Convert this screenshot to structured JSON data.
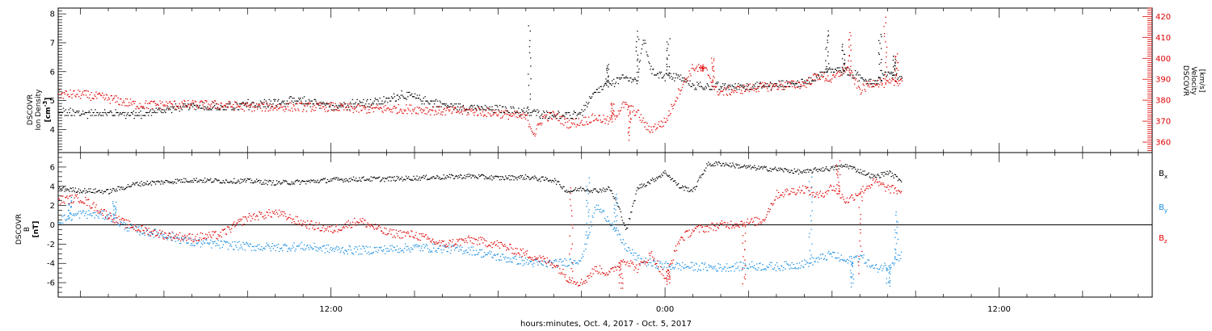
{
  "chart_data": [
    {
      "type": "scatter",
      "panel": "density-velocity",
      "xlabel": "hours:minutes, Oct.  4, 2017 - Oct.  5, 2017",
      "x_ticks": [
        "12:00",
        "0:00",
        "12:00"
      ],
      "x_tick_hours": [
        12,
        24,
        36
      ],
      "xlim_hours": [
        2.2,
        41.5
      ],
      "data_end_hour": 32.5,
      "left_axis": {
        "label_lines": [
          "DSCOVR",
          "Ion Density"
        ],
        "unit": "[cm",
        "unit_sup": "-3",
        "unit_close": "]",
        "ylim": [
          3.2,
          8.2
        ],
        "ticks": [
          "4",
          "5",
          "6",
          "7",
          "8"
        ],
        "color": "#000000"
      },
      "right_axis": {
        "label_lines": [
          "DSCOVR",
          "Velocity",
          "[km/s]"
        ],
        "ylim": [
          355,
          424
        ],
        "ticks": [
          "360",
          "370",
          "380",
          "390",
          "400",
          "410",
          "420"
        ],
        "color": "#e00000"
      },
      "series": [
        {
          "axis": "left",
          "color": "#000000",
          "points": [
            [
              2.2,
              4.6
            ],
            [
              3,
              4.55
            ],
            [
              4,
              4.6
            ],
            [
              5,
              4.5
            ],
            [
              6,
              4.7
            ],
            [
              7,
              4.8
            ],
            [
              8,
              4.75
            ],
            [
              9,
              4.85
            ],
            [
              10,
              4.9
            ],
            [
              11,
              5.0
            ],
            [
              11.5,
              4.85
            ],
            [
              12,
              4.8
            ],
            [
              13,
              4.9
            ],
            [
              14,
              5.0
            ],
            [
              14.5,
              5.2
            ],
            [
              15,
              5.1
            ],
            [
              16,
              4.85
            ],
            [
              17,
              4.75
            ],
            [
              18,
              4.7
            ],
            [
              19,
              4.6
            ],
            [
              19.5,
              4.55
            ],
            [
              20,
              4.5
            ],
            [
              20.5,
              4.45
            ],
            [
              21,
              4.6
            ],
            [
              21.5,
              5.3
            ],
            [
              22,
              5.6
            ],
            [
              22.5,
              5.8
            ],
            [
              23,
              5.7
            ],
            [
              23.2,
              7.2
            ],
            [
              23.5,
              6.0
            ],
            [
              24,
              5.85
            ],
            [
              24.5,
              5.8
            ],
            [
              25,
              5.5
            ],
            [
              26,
              5.45
            ],
            [
              27,
              5.5
            ],
            [
              28,
              5.55
            ],
            [
              29,
              5.6
            ],
            [
              29.5,
              5.9
            ],
            [
              30,
              6.1
            ],
            [
              30.5,
              6.0
            ],
            [
              31,
              5.8
            ],
            [
              31.5,
              5.6
            ],
            [
              32,
              6.0
            ],
            [
              32.5,
              5.7
            ]
          ],
          "spikes": [
            [
              19.1,
              7.6
            ],
            [
              21.9,
              6.3
            ],
            [
              23.0,
              7.4
            ],
            [
              24.1,
              7.1
            ],
            [
              29.8,
              7.4
            ],
            [
              30.4,
              6.9
            ],
            [
              31.7,
              7.3
            ],
            [
              32.2,
              6.6
            ]
          ]
        },
        {
          "axis": "right",
          "color": "#e00000",
          "points": [
            [
              2.2,
              383
            ],
            [
              3,
              383
            ],
            [
              4,
              381
            ],
            [
              5,
              378
            ],
            [
              6,
              378
            ],
            [
              7,
              378
            ],
            [
              8,
              378
            ],
            [
              9,
              377
            ],
            [
              10,
              377
            ],
            [
              11,
              377
            ],
            [
              12,
              377
            ],
            [
              13,
              376
            ],
            [
              14,
              376
            ],
            [
              15,
              376
            ],
            [
              16,
              375
            ],
            [
              17,
              375
            ],
            [
              18,
              374
            ],
            [
              18.5,
              373
            ],
            [
              19,
              372
            ],
            [
              19.3,
              364
            ],
            [
              19.6,
              372
            ],
            [
              20,
              373
            ],
            [
              20.5,
              369
            ],
            [
              21,
              370
            ],
            [
              21.5,
              372
            ],
            [
              22,
              370
            ],
            [
              22.5,
              378
            ],
            [
              23,
              374
            ],
            [
              23.4,
              366
            ],
            [
              24,
              370
            ],
            [
              24.5,
              385
            ],
            [
              25,
              396
            ],
            [
              25.5,
              394
            ],
            [
              25.8,
              385
            ],
            [
              26,
              384
            ],
            [
              27,
              386
            ],
            [
              28,
              387
            ],
            [
              29,
              388
            ],
            [
              29.5,
              392
            ],
            [
              30,
              390
            ],
            [
              30.5,
              396
            ],
            [
              31,
              385
            ],
            [
              31.5,
              389
            ],
            [
              32,
              388
            ],
            [
              32.5,
              390
            ]
          ],
          "spikes": [
            [
              22.1,
              379
            ],
            [
              22.7,
              362
            ],
            [
              25.3,
              397
            ],
            [
              25.7,
              401
            ],
            [
              30.6,
              413
            ],
            [
              31.9,
              420
            ],
            [
              32.3,
              402
            ]
          ]
        }
      ]
    },
    {
      "type": "scatter",
      "panel": "magnetic-field",
      "xlabel": "hours:minutes, Oct.  4, 2017 - Oct.  5, 2017",
      "x_ticks": [
        "12:00",
        "0:00",
        "12:00"
      ],
      "x_tick_hours": [
        12,
        24,
        36
      ],
      "left_axis": {
        "label_lines": [
          "DSCOVR",
          "B",
          "[nT]"
        ],
        "ylim": [
          -7.5,
          7.5
        ],
        "ticks": [
          "-6",
          "-4",
          "-2",
          "0",
          "2",
          "4",
          "6"
        ],
        "zero_line": true
      },
      "legend_placement": "right",
      "series": [
        {
          "name": "B",
          "sub": "x",
          "color": "#000000",
          "points": [
            [
              2.2,
              3.8
            ],
            [
              3,
              3.6
            ],
            [
              4,
              3.5
            ],
            [
              5,
              4.3
            ],
            [
              6,
              4.5
            ],
            [
              7,
              4.7
            ],
            [
              8,
              4.6
            ],
            [
              9,
              4.6
            ],
            [
              10,
              4.4
            ],
            [
              11,
              4.5
            ],
            [
              12,
              4.7
            ],
            [
              13,
              4.8
            ],
            [
              14,
              4.8
            ],
            [
              15,
              4.9
            ],
            [
              16,
              5.0
            ],
            [
              17,
              5.1
            ],
            [
              18,
              4.9
            ],
            [
              19,
              5.0
            ],
            [
              19.5,
              4.8
            ],
            [
              20,
              4.7
            ],
            [
              20.5,
              3.5
            ],
            [
              21,
              3.8
            ],
            [
              21.5,
              3.6
            ],
            [
              22,
              3.8
            ],
            [
              22.3,
              2.0
            ],
            [
              22.6,
              -0.5
            ],
            [
              23,
              3.9
            ],
            [
              23.5,
              4.6
            ],
            [
              24,
              5.5
            ],
            [
              24.5,
              4.0
            ],
            [
              25,
              3.6
            ],
            [
              25.5,
              6.3
            ],
            [
              26,
              6.4
            ],
            [
              27,
              6.0
            ],
            [
              28,
              5.8
            ],
            [
              29,
              5.5
            ],
            [
              29.5,
              5.8
            ],
            [
              30,
              5.9
            ],
            [
              30.5,
              6.2
            ],
            [
              31,
              5.6
            ],
            [
              31.5,
              5.0
            ],
            [
              32,
              5.5
            ],
            [
              32.5,
              4.6
            ]
          ],
          "spikes": []
        },
        {
          "name": "B",
          "sub": "y",
          "color": "#1a8ee0",
          "points": [
            [
              2.2,
              0.5
            ],
            [
              3,
              1.2
            ],
            [
              4,
              1.0
            ],
            [
              4.5,
              0.0
            ],
            [
              5,
              -0.5
            ],
            [
              6,
              -1.0
            ],
            [
              7,
              -1.8
            ],
            [
              8,
              -2.0
            ],
            [
              9,
              -2.2
            ],
            [
              10,
              -2.3
            ],
            [
              11,
              -2.2
            ],
            [
              12,
              -2.5
            ],
            [
              13,
              -2.6
            ],
            [
              14,
              -2.5
            ],
            [
              15,
              -2.3
            ],
            [
              16,
              -2.4
            ],
            [
              17,
              -2.6
            ],
            [
              18,
              -3.3
            ],
            [
              19,
              -3.8
            ],
            [
              19.5,
              -4.0
            ],
            [
              20,
              -4.0
            ],
            [
              20.5,
              -3.8
            ],
            [
              21,
              -3.5
            ],
            [
              21.5,
              2.0
            ],
            [
              22,
              0.5
            ],
            [
              22.5,
              -2.0
            ],
            [
              23,
              -3.5
            ],
            [
              23.5,
              -4.0
            ],
            [
              24,
              -4.2
            ],
            [
              25,
              -4.3
            ],
            [
              26,
              -4.4
            ],
            [
              27,
              -4.2
            ],
            [
              28,
              -4.3
            ],
            [
              29,
              -4.0
            ],
            [
              29.5,
              -3.5
            ],
            [
              30,
              -3.0
            ],
            [
              30.5,
              -3.8
            ],
            [
              31,
              -3.2
            ],
            [
              31.5,
              -4.5
            ],
            [
              32,
              -4.2
            ],
            [
              32.5,
              -3.0
            ]
          ],
          "spikes": [
            [
              2.6,
              2.7
            ],
            [
              4.2,
              2.4
            ],
            [
              21.2,
              4.8
            ],
            [
              22.2,
              3.2
            ],
            [
              29.2,
              5.2
            ],
            [
              30.7,
              -6.3
            ],
            [
              32.0,
              -6.3
            ],
            [
              32.3,
              1.2
            ]
          ]
        },
        {
          "name": "B",
          "sub": "z",
          "color": "#e00000",
          "points": [
            [
              2.2,
              2.6
            ],
            [
              3,
              2.8
            ],
            [
              4,
              1.0
            ],
            [
              4.5,
              0.3
            ],
            [
              5,
              -0.3
            ],
            [
              6,
              -1.0
            ],
            [
              7,
              -1.3
            ],
            [
              8,
              -1.0
            ],
            [
              9,
              0.8
            ],
            [
              10,
              1.3
            ],
            [
              11,
              0.2
            ],
            [
              12,
              -0.5
            ],
            [
              13,
              0.5
            ],
            [
              14,
              -0.8
            ],
            [
              15,
              -1.0
            ],
            [
              16,
              -2.0
            ],
            [
              17,
              -1.5
            ],
            [
              18,
              -2.0
            ],
            [
              19,
              -3.0
            ],
            [
              19.5,
              -3.5
            ],
            [
              20,
              -4.0
            ],
            [
              20.5,
              -5.5
            ],
            [
              21,
              -6.0
            ],
            [
              21.5,
              -4.5
            ],
            [
              22,
              -5.0
            ],
            [
              22.5,
              -3.5
            ],
            [
              23,
              -4.5
            ],
            [
              23.5,
              -3.0
            ],
            [
              24,
              -5.5
            ],
            [
              24.5,
              -1.5
            ],
            [
              25,
              -0.5
            ],
            [
              26,
              0.0
            ],
            [
              27,
              0.3
            ],
            [
              27.5,
              0.5
            ],
            [
              28,
              3.2
            ],
            [
              29,
              3.8
            ],
            [
              29.5,
              3.0
            ],
            [
              30,
              4.0
            ],
            [
              30.5,
              2.5
            ],
            [
              31,
              3.5
            ],
            [
              31.5,
              4.5
            ],
            [
              32,
              3.8
            ],
            [
              32.5,
              3.5
            ]
          ],
          "spikes": [
            [
              20.6,
              4.0
            ],
            [
              22.4,
              -6.5
            ],
            [
              24.1,
              -6.0
            ],
            [
              26.8,
              -6.2
            ],
            [
              30.2,
              6.5
            ],
            [
              31.0,
              -4.8
            ]
          ]
        }
      ]
    }
  ]
}
